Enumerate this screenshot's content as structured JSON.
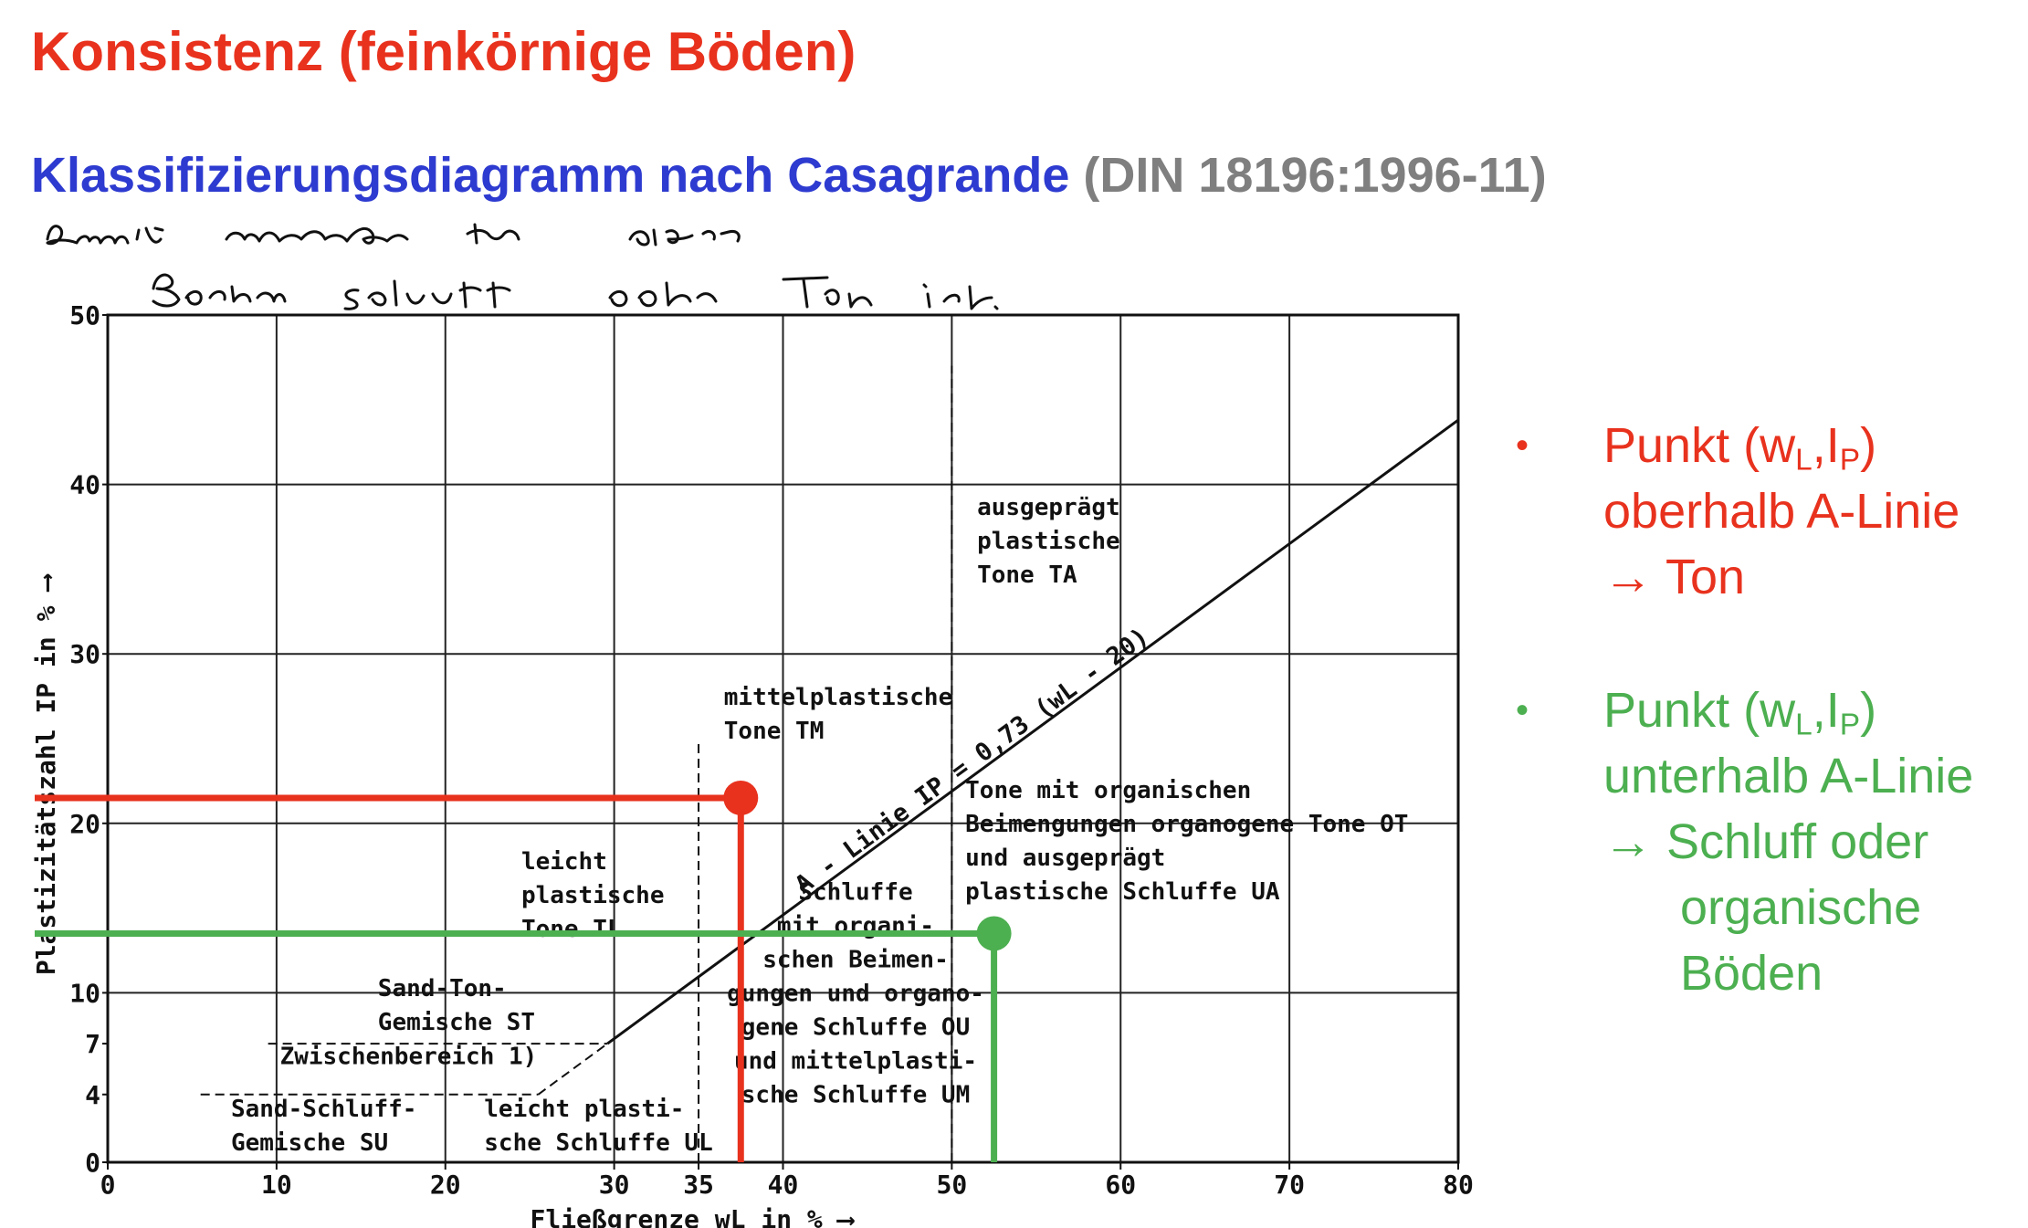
{
  "title": "Konsistenz (feinkörnige Böden)",
  "subtitle": {
    "main": "Klassifizierungsdiagramm nach Casagrande",
    "norm": "(DIN 18196:1996-11)"
  },
  "handwritten_note": "Damit unterscheide ich ob der Boden Schluff oder Ton ist.",
  "legend": {
    "red": {
      "bullet": "•",
      "var1": "w",
      "sub1": "L",
      "var2": "I",
      "sub2": "P",
      "prefix": "Punkt (",
      "comma": ",",
      "suffix": ")",
      "line2": "oberhalb A-Linie",
      "line3": "→ Ton"
    },
    "green": {
      "bullet": "•",
      "var1": "w",
      "sub1": "L",
      "var2": "I",
      "sub2": "P",
      "prefix": "Punkt (",
      "comma": ",",
      "suffix": ")",
      "line2": "unterhalb A-Linie",
      "line3": "→ Schluff oder",
      "line4": "organische",
      "line5": "Böden"
    }
  },
  "colors": {
    "title": "#e8321e",
    "subtitle": "#2e3bd0",
    "norm": "#7f7f7f",
    "red": "#e8321e",
    "green": "#4caf50"
  },
  "chart_data": {
    "type": "line",
    "xlabel": "Fließgrenze wL in % ⟶",
    "ylabel": "Plastizitätszahl IP in % ⟶",
    "xlim": [
      0,
      80
    ],
    "ylim": [
      0,
      50
    ],
    "grid": true,
    "x_ticks": [
      "0",
      "10",
      "20",
      "30",
      "35",
      "40",
      "50",
      "60",
      "70",
      "80"
    ],
    "x_tick_values": [
      0,
      10,
      20,
      30,
      35,
      40,
      50,
      60,
      70,
      80
    ],
    "y_ticks": [
      "0",
      "4",
      "7",
      "10",
      "20",
      "30",
      "40",
      "50"
    ],
    "y_tick_values": [
      0,
      4,
      7,
      10,
      20,
      30,
      40,
      50
    ],
    "a_line": {
      "label": "A - Linie IP = 0,73 (wL - 20)",
      "x": [
        29.6,
        80
      ],
      "y": [
        7,
        43.8
      ]
    },
    "boundaries": [
      {
        "x": [
          35,
          35
        ],
        "y": [
          0,
          25
        ]
      },
      {
        "x": [
          50,
          50
        ],
        "y": [
          0,
          47
        ]
      },
      {
        "x": [
          5.5,
          25.5
        ],
        "y": [
          4,
          4
        ]
      },
      {
        "x": [
          9.5,
          29.6
        ],
        "y": [
          7,
          7
        ]
      },
      {
        "x": [
          25.5,
          29.6
        ],
        "y": [
          4,
          7
        ]
      }
    ],
    "regions": [
      {
        "label": [
          "ausgeprägt",
          "plastische",
          "Tone TA"
        ],
        "x": 51.5,
        "y": 38.2
      },
      {
        "label": [
          "mittelplastische",
          "Tone TM"
        ],
        "x": 36.5,
        "y": 27.0
      },
      {
        "label": [
          "Tone mit organischen",
          "Beimengungen organogene Tone OT",
          "und ausgeprägt",
          "plastische Schluffe UA"
        ],
        "x": 50.8,
        "y": 21.5
      },
      {
        "label": [
          "leicht",
          "plastische",
          "Tone TL"
        ],
        "x": 24.5,
        "y": 17.3
      },
      {
        "label": [
          "Schluffe",
          "mit organi-",
          "schen Beimen-",
          "gungen und organo-",
          "gene Schluffe OU",
          "und mittelplasti-",
          "sche Schluffe UM"
        ],
        "x": 44.3,
        "y": 15.5,
        "align": "center"
      },
      {
        "label": [
          "Sand-Ton-",
          "Gemische ST"
        ],
        "x": 16.0,
        "y": 9.8
      },
      {
        "label": [
          "Zwischenbereich 1)"
        ],
        "x": 10.2,
        "y": 5.8
      },
      {
        "label": [
          "Sand-Schluff-",
          "Gemische SU"
        ],
        "x": 7.3,
        "y": 2.7
      },
      {
        "label": [
          "leicht plasti-",
          "sche Schluffe UL"
        ],
        "x": 22.3,
        "y": 2.7
      }
    ],
    "series": [
      {
        "name": "Punkt (wL,IP) oberhalb A-Linie",
        "color": "#e8321e",
        "x": [
          37.5
        ],
        "y": [
          21.5
        ]
      },
      {
        "name": "Punkt (wL,IP) unterhalb A-Linie",
        "color": "#4caf50",
        "x": [
          52.5
        ],
        "y": [
          13.5
        ]
      }
    ]
  }
}
